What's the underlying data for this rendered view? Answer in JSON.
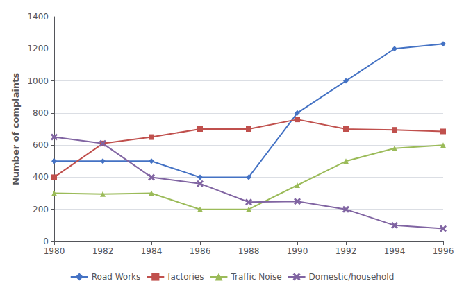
{
  "chart_data": {
    "type": "line",
    "x": [
      1980,
      1982,
      1984,
      1986,
      1988,
      1990,
      1992,
      1994,
      1996
    ],
    "xlim": [
      1980,
      1996
    ],
    "xticks": [
      1980,
      1982,
      1984,
      1986,
      1988,
      1990,
      1992,
      1994,
      1996
    ],
    "ylabel": "Number of complaints",
    "ylim": [
      0,
      1400
    ],
    "yticks": [
      0,
      200,
      400,
      600,
      800,
      1000,
      1200,
      1400
    ],
    "grid": true,
    "legend": "bottom",
    "series": [
      {
        "name": "Road Works",
        "color": "#4472c4",
        "marker": "diamond",
        "values": [
          500,
          500,
          500,
          400,
          400,
          800,
          1000,
          1200,
          1230
        ]
      },
      {
        "name": "factories",
        "color": "#c0504d",
        "marker": "square",
        "values": [
          400,
          610,
          650,
          700,
          700,
          760,
          700,
          695,
          685
        ]
      },
      {
        "name": "Traffic Noise",
        "color": "#9bbb59",
        "marker": "triangle",
        "values": [
          300,
          295,
          300,
          200,
          200,
          350,
          500,
          580,
          600
        ]
      },
      {
        "name": "Domestic/household",
        "color": "#8064a2",
        "marker": "x",
        "values": [
          650,
          610,
          400,
          360,
          245,
          250,
          200,
          100,
          80
        ]
      }
    ]
  }
}
